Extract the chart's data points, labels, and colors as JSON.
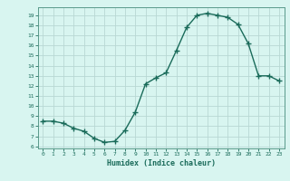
{
  "x": [
    0,
    1,
    2,
    3,
    4,
    5,
    6,
    7,
    8,
    9,
    10,
    11,
    12,
    13,
    14,
    15,
    16,
    17,
    18,
    19,
    20,
    21,
    22,
    23
  ],
  "y": [
    8.5,
    8.5,
    8.3,
    7.8,
    7.5,
    6.8,
    6.4,
    6.5,
    7.6,
    9.4,
    12.2,
    12.8,
    13.3,
    15.5,
    17.8,
    19.0,
    19.2,
    19.0,
    18.8,
    18.1,
    16.2,
    13.0,
    13.0,
    12.5
  ],
  "title": "",
  "xlabel": "Humidex (Indice chaleur)",
  "ylabel": "",
  "xlim": [
    -0.5,
    23.5
  ],
  "ylim": [
    5.8,
    19.8
  ],
  "yticks": [
    6,
    7,
    8,
    9,
    10,
    11,
    12,
    13,
    14,
    15,
    16,
    17,
    18,
    19
  ],
  "xticks": [
    0,
    1,
    2,
    3,
    4,
    5,
    6,
    7,
    8,
    9,
    10,
    11,
    12,
    13,
    14,
    15,
    16,
    17,
    18,
    19,
    20,
    21,
    22,
    23
  ],
  "line_color": "#1a6b5a",
  "marker_color": "#1a6b5a",
  "bg_color": "#d8f5f0",
  "grid_color": "#b8d8d4",
  "label_color": "#1a6b5a",
  "tick_color": "#1a6b5a",
  "spine_color": "#5a9a8a"
}
